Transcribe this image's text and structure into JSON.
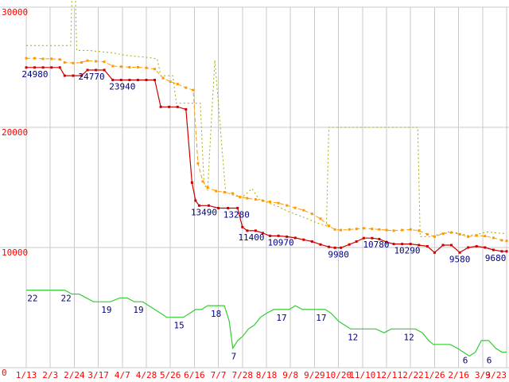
{
  "chart_data": {
    "type": "line",
    "x_tick_labels": [
      "1/13",
      "2/3",
      "2/24",
      "3/17",
      "4/7",
      "4/28",
      "5/26",
      "6/16",
      "7/7",
      "7/28",
      "8/18",
      "9/8",
      "9/29",
      "10/20",
      "11/10",
      "12/1",
      "12/22",
      "1/26",
      "2/16",
      "3/9",
      "3/23"
    ],
    "y_axis": {
      "range": [
        0,
        30000
      ],
      "ticks": [
        {
          "label": "0",
          "value": 0
        },
        {
          "label": "10000",
          "value": 10000
        },
        {
          "label": "20000",
          "value": 20000
        },
        {
          "label": "30000",
          "value": 30000
        }
      ]
    },
    "y2_axis": {
      "range": [
        2,
        95
      ]
    },
    "grid": true,
    "legend": "none",
    "colors": {
      "axis_text": "#ff0000",
      "point_label": "#000080",
      "grid": "#c9c9c9",
      "background": "#ffffff",
      "lowest": "#cc0000",
      "average": "#ff9900",
      "highest": "#a8a800",
      "stores": "#33cc33"
    },
    "series": [
      {
        "name": "highest-price",
        "color": "#a8a800",
        "dash": "2,3",
        "width": 1,
        "marker": "none",
        "axis": "y",
        "points": [
          [
            0,
            26800
          ],
          [
            0.6,
            26800
          ],
          [
            1.2,
            26800
          ],
          [
            1.85,
            26800
          ],
          [
            1.9,
            30800
          ],
          [
            2.05,
            30800
          ],
          [
            2.1,
            26400
          ],
          [
            2.6,
            26400
          ],
          [
            3.1,
            26300
          ],
          [
            3.6,
            26200
          ],
          [
            4.1,
            26000
          ],
          [
            4.6,
            25900
          ],
          [
            5.1,
            25800
          ],
          [
            5.45,
            25700
          ],
          [
            5.6,
            24300
          ],
          [
            6.1,
            24300
          ],
          [
            6.25,
            22000
          ],
          [
            6.7,
            22000
          ],
          [
            7.25,
            22000
          ],
          [
            7.4,
            15300
          ],
          [
            7.55,
            14800
          ],
          [
            7.85,
            25600
          ],
          [
            8.3,
            14600
          ],
          [
            8.7,
            14300
          ],
          [
            9.0,
            14200
          ],
          [
            9.4,
            14900
          ],
          [
            9.7,
            14000
          ],
          [
            10.1,
            13700
          ],
          [
            10.5,
            13400
          ],
          [
            10.9,
            13000
          ],
          [
            11.3,
            12700
          ],
          [
            11.7,
            12400
          ],
          [
            12.1,
            12050
          ],
          [
            12.5,
            11800
          ],
          [
            12.6,
            20000
          ],
          [
            16.3,
            20000
          ],
          [
            16.4,
            10900
          ],
          [
            16.8,
            10900
          ],
          [
            17.2,
            11100
          ],
          [
            17.6,
            11300
          ],
          [
            18.0,
            11200
          ],
          [
            18.4,
            11000
          ],
          [
            18.8,
            11100
          ],
          [
            19.2,
            11300
          ],
          [
            19.6,
            11200
          ],
          [
            20,
            11150
          ]
        ]
      },
      {
        "name": "average-price",
        "color": "#ff9900",
        "dash": "5,3",
        "width": 1,
        "marker": "square",
        "axis": "y",
        "points": [
          [
            0,
            25750
          ],
          [
            0.35,
            25750
          ],
          [
            0.7,
            25700
          ],
          [
            1.05,
            25700
          ],
          [
            1.4,
            25650
          ],
          [
            1.6,
            25400
          ],
          [
            1.95,
            25350
          ],
          [
            2.3,
            25400
          ],
          [
            2.55,
            25550
          ],
          [
            2.9,
            25500
          ],
          [
            3.25,
            25450
          ],
          [
            3.6,
            25100
          ],
          [
            3.95,
            25050
          ],
          [
            4.3,
            25000
          ],
          [
            4.65,
            25000
          ],
          [
            5.0,
            24950
          ],
          [
            5.35,
            24850
          ],
          [
            5.7,
            24100
          ],
          [
            6.0,
            23800
          ],
          [
            6.3,
            23600
          ],
          [
            6.65,
            23300
          ],
          [
            6.95,
            23100
          ],
          [
            7.15,
            17000
          ],
          [
            7.35,
            15500
          ],
          [
            7.55,
            15000
          ],
          [
            7.9,
            14700
          ],
          [
            8.25,
            14600
          ],
          [
            8.6,
            14500
          ],
          [
            8.9,
            14200
          ],
          [
            9.2,
            14100
          ],
          [
            9.55,
            14000
          ],
          [
            9.85,
            13900
          ],
          [
            10.15,
            13800
          ],
          [
            10.5,
            13700
          ],
          [
            10.85,
            13500
          ],
          [
            11.2,
            13300
          ],
          [
            11.55,
            13100
          ],
          [
            11.9,
            12800
          ],
          [
            12.25,
            12400
          ],
          [
            12.6,
            11800
          ],
          [
            12.85,
            11500
          ],
          [
            13.1,
            11450
          ],
          [
            13.45,
            11500
          ],
          [
            13.75,
            11550
          ],
          [
            14.05,
            11600
          ],
          [
            14.4,
            11550
          ],
          [
            14.7,
            11500
          ],
          [
            15.0,
            11450
          ],
          [
            15.3,
            11400
          ],
          [
            15.65,
            11450
          ],
          [
            16.0,
            11500
          ],
          [
            16.35,
            11400
          ],
          [
            16.7,
            11100
          ],
          [
            17.0,
            10900
          ],
          [
            17.35,
            11150
          ],
          [
            17.7,
            11250
          ],
          [
            18.05,
            11100
          ],
          [
            18.4,
            10900
          ],
          [
            18.75,
            11000
          ],
          [
            19.1,
            10950
          ],
          [
            19.45,
            10800
          ],
          [
            19.8,
            10600
          ],
          [
            20,
            10550
          ]
        ]
      },
      {
        "name": "lowest-price",
        "color": "#cc0000",
        "dash": "",
        "width": 1.2,
        "marker": "square",
        "axis": "y",
        "points": [
          [
            0,
            24980
          ],
          [
            0.35,
            24980
          ],
          [
            0.7,
            24980
          ],
          [
            1.05,
            24980
          ],
          [
            1.4,
            24980
          ],
          [
            1.6,
            24300
          ],
          [
            1.95,
            24300
          ],
          [
            2.3,
            24300
          ],
          [
            2.55,
            24770
          ],
          [
            2.9,
            24770
          ],
          [
            3.25,
            24770
          ],
          [
            3.6,
            23940
          ],
          [
            3.95,
            23940
          ],
          [
            4.3,
            23940
          ],
          [
            4.65,
            23940
          ],
          [
            5.0,
            23940
          ],
          [
            5.35,
            23940
          ],
          [
            5.6,
            21700
          ],
          [
            5.95,
            21700
          ],
          [
            6.3,
            21700
          ],
          [
            6.65,
            21500
          ],
          [
            6.9,
            15400
          ],
          [
            7.05,
            13900
          ],
          [
            7.2,
            13490
          ],
          [
            7.6,
            13490
          ],
          [
            8.0,
            13280
          ],
          [
            8.4,
            13280
          ],
          [
            8.8,
            13280
          ],
          [
            9.0,
            11700
          ],
          [
            9.2,
            11400
          ],
          [
            9.55,
            11400
          ],
          [
            9.85,
            11200
          ],
          [
            10.15,
            10970
          ],
          [
            10.5,
            10970
          ],
          [
            10.85,
            10900
          ],
          [
            11.2,
            10800
          ],
          [
            11.55,
            10650
          ],
          [
            11.9,
            10500
          ],
          [
            12.25,
            10250
          ],
          [
            12.6,
            10050
          ],
          [
            12.85,
            9980
          ],
          [
            13.1,
            9980
          ],
          [
            13.45,
            10250
          ],
          [
            13.75,
            10500
          ],
          [
            14.05,
            10780
          ],
          [
            14.4,
            10780
          ],
          [
            14.7,
            10700
          ],
          [
            15.0,
            10450
          ],
          [
            15.3,
            10290
          ],
          [
            15.65,
            10290
          ],
          [
            16.0,
            10290
          ],
          [
            16.35,
            10200
          ],
          [
            16.7,
            10100
          ],
          [
            17.0,
            9580
          ],
          [
            17.35,
            10200
          ],
          [
            17.7,
            10200
          ],
          [
            18.05,
            9580
          ],
          [
            18.4,
            10000
          ],
          [
            18.75,
            10100
          ],
          [
            19.1,
            10000
          ],
          [
            19.45,
            9800
          ],
          [
            19.8,
            9680
          ],
          [
            20,
            9680
          ]
        ]
      },
      {
        "name": "store-count",
        "color": "#33cc33",
        "dash": "",
        "width": 1.2,
        "marker": "none",
        "axis": "y2",
        "points": [
          [
            0,
            22
          ],
          [
            0.4,
            22
          ],
          [
            0.8,
            22
          ],
          [
            1.2,
            22
          ],
          [
            1.6,
            22
          ],
          [
            1.9,
            21
          ],
          [
            2.2,
            21
          ],
          [
            2.5,
            20
          ],
          [
            2.8,
            19
          ],
          [
            3.15,
            19
          ],
          [
            3.5,
            19
          ],
          [
            3.9,
            20
          ],
          [
            4.2,
            20
          ],
          [
            4.5,
            19
          ],
          [
            4.85,
            19
          ],
          [
            5.1,
            18
          ],
          [
            5.35,
            17
          ],
          [
            5.6,
            16
          ],
          [
            5.85,
            15
          ],
          [
            6.2,
            15
          ],
          [
            6.55,
            15
          ],
          [
            6.8,
            16
          ],
          [
            7.05,
            17
          ],
          [
            7.3,
            17
          ],
          [
            7.55,
            18
          ],
          [
            7.9,
            18
          ],
          [
            8.25,
            18
          ],
          [
            8.45,
            14
          ],
          [
            8.6,
            7
          ],
          [
            8.8,
            9
          ],
          [
            9.0,
            10
          ],
          [
            9.25,
            12
          ],
          [
            9.5,
            13
          ],
          [
            9.75,
            15
          ],
          [
            10.0,
            16
          ],
          [
            10.3,
            17
          ],
          [
            10.65,
            17
          ],
          [
            10.95,
            17
          ],
          [
            11.2,
            18
          ],
          [
            11.5,
            17
          ],
          [
            11.85,
            17
          ],
          [
            12.15,
            17
          ],
          [
            12.45,
            17
          ],
          [
            12.7,
            16
          ],
          [
            13.0,
            14
          ],
          [
            13.25,
            13
          ],
          [
            13.5,
            12
          ],
          [
            13.85,
            12
          ],
          [
            14.2,
            12
          ],
          [
            14.55,
            12
          ],
          [
            14.9,
            11
          ],
          [
            15.2,
            12
          ],
          [
            15.55,
            12
          ],
          [
            15.9,
            12
          ],
          [
            16.2,
            12
          ],
          [
            16.5,
            11
          ],
          [
            16.75,
            9
          ],
          [
            16.95,
            8
          ],
          [
            17.3,
            8
          ],
          [
            17.65,
            8
          ],
          [
            17.95,
            7
          ],
          [
            18.2,
            6
          ],
          [
            18.45,
            5
          ],
          [
            18.7,
            6
          ],
          [
            18.95,
            9
          ],
          [
            19.25,
            9
          ],
          [
            19.55,
            7
          ],
          [
            19.8,
            6
          ],
          [
            20,
            6
          ]
        ]
      }
    ],
    "point_labels": [
      {
        "text": "24980",
        "xi": 0.36,
        "value": 24980,
        "axis": "y"
      },
      {
        "text": "24770",
        "xi": 2.72,
        "value": 24770,
        "axis": "y"
      },
      {
        "text": "23940",
        "xi": 4.0,
        "value": 23940,
        "axis": "y"
      },
      {
        "text": "13490",
        "xi": 7.4,
        "value": 13490,
        "axis": "y"
      },
      {
        "text": "13280",
        "xi": 8.75,
        "value": 13280,
        "axis": "y"
      },
      {
        "text": "11400",
        "xi": 9.37,
        "value": 11400,
        "axis": "y"
      },
      {
        "text": "10970",
        "xi": 10.6,
        "value": 10970,
        "axis": "y"
      },
      {
        "text": "9980",
        "xi": 13.0,
        "value": 9980,
        "axis": "y"
      },
      {
        "text": "10780",
        "xi": 14.57,
        "value": 10780,
        "axis": "y"
      },
      {
        "text": "10290",
        "xi": 15.86,
        "value": 10290,
        "axis": "y"
      },
      {
        "text": "9580",
        "xi": 18.05,
        "value": 9580,
        "axis": "y"
      },
      {
        "text": "9680",
        "xi": 19.54,
        "value": 9680,
        "axis": "y"
      },
      {
        "text": "22",
        "xi": 0.26,
        "value": 22,
        "axis": "y2"
      },
      {
        "text": "22",
        "xi": 1.66,
        "value": 22,
        "axis": "y2"
      },
      {
        "text": "19",
        "xi": 3.34,
        "value": 19,
        "axis": "y2"
      },
      {
        "text": "19",
        "xi": 4.67,
        "value": 19,
        "axis": "y2"
      },
      {
        "text": "15",
        "xi": 6.36,
        "value": 15,
        "axis": "y2"
      },
      {
        "text": "18",
        "xi": 7.9,
        "value": 18,
        "axis": "y2"
      },
      {
        "text": "7",
        "xi": 8.64,
        "value": 7,
        "axis": "y2"
      },
      {
        "text": "17",
        "xi": 10.63,
        "value": 17,
        "axis": "y2"
      },
      {
        "text": "17",
        "xi": 12.28,
        "value": 17,
        "axis": "y2"
      },
      {
        "text": "12",
        "xi": 13.6,
        "value": 12,
        "axis": "y2"
      },
      {
        "text": "12",
        "xi": 15.93,
        "value": 12,
        "axis": "y2"
      },
      {
        "text": "6",
        "xi": 18.28,
        "value": 6,
        "axis": "y2"
      },
      {
        "text": "6",
        "xi": 19.27,
        "value": 6,
        "axis": "y2"
      }
    ]
  }
}
